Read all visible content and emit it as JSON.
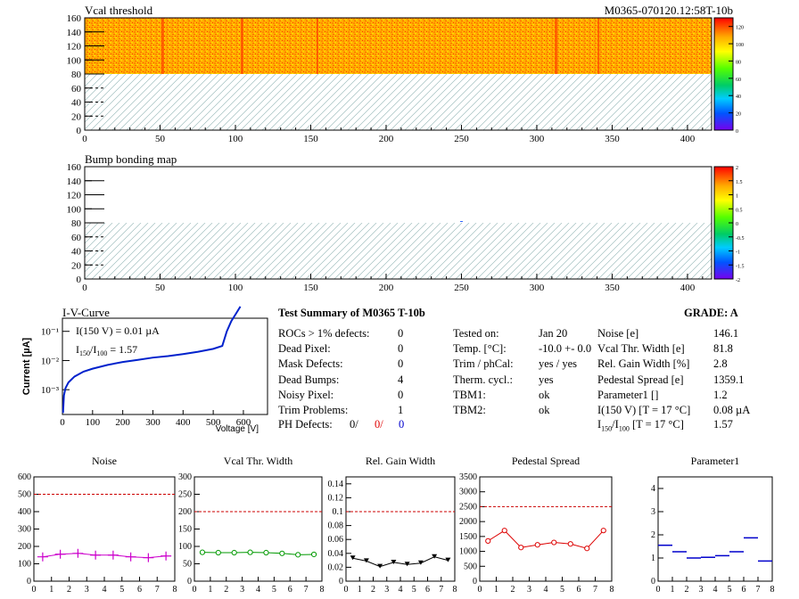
{
  "maps": [
    {
      "title": "Vcal threshold",
      "module_id": "M0365-070120.12:58T-10b",
      "x_ticks": [
        0,
        50,
        100,
        150,
        200,
        250,
        300,
        350,
        400
      ],
      "y_ticks": [
        0,
        20,
        40,
        60,
        80,
        100,
        120,
        140,
        160
      ],
      "z_ticks": [
        0,
        20,
        40,
        60,
        80,
        100,
        120
      ]
    },
    {
      "title": "Bump bonding map",
      "x_ticks": [
        0,
        50,
        100,
        150,
        200,
        250,
        300,
        350,
        400
      ],
      "y_ticks": [
        0,
        20,
        40,
        60,
        80,
        100,
        120,
        140,
        160
      ],
      "z_ticks": [
        -2,
        -1.5,
        -1,
        -0.5,
        0,
        0.5,
        1,
        1.5,
        2
      ]
    }
  ],
  "iv": {
    "title": "I-V-Curve",
    "ylabel": "Current [µA]",
    "xlabel": "Voltage [V]",
    "annot1": "I(150 V) = 0.01 µA",
    "annot2_pre": "I",
    "annot2_sub1": "150",
    "annot2_mid": "/I",
    "annot2_sub2": "100",
    "annot2_post": " =  1.57",
    "x_ticks": [
      0,
      100,
      200,
      300,
      400,
      500,
      600
    ],
    "y_ticks": [
      "10⁻³",
      "10⁻²",
      "10⁻¹"
    ]
  },
  "summary": {
    "title": "Test Summary of M0365     T-10b",
    "grade": "GRADE:  A",
    "rows": [
      {
        "label": "ROCs > 1% defects:",
        "value": "0"
      },
      {
        "label": "Dead Pixel:",
        "value": "0"
      },
      {
        "label": "Mask Defects:",
        "value": "0"
      },
      {
        "label": "Dead Bumps:",
        "value": "4"
      },
      {
        "label": "Noisy Pixel:",
        "value": "0"
      },
      {
        "label": "Trim Problems:",
        "value": "1"
      }
    ],
    "ph_label": "PH Defects:",
    "ph_v1": "0/",
    "ph_v2": "0/",
    "ph_v3": "0",
    "mid": [
      {
        "label": "Tested on:",
        "value": "Jan 20"
      },
      {
        "label": "Temp. [°C]:",
        "value": "-10.0 +- 0.0"
      },
      {
        "label": "Trim / phCal:",
        "value": "yes / yes"
      },
      {
        "label": "Therm. cycl.:",
        "value": "yes"
      },
      {
        "label": "TBM1:",
        "value": "ok"
      },
      {
        "label": "TBM2:",
        "value": "ok"
      }
    ],
    "right": [
      {
        "label": "Noise [e]",
        "value": "146.1"
      },
      {
        "label": "Vcal Thr. Width [e]",
        "value": "81.8"
      },
      {
        "label": "Rel. Gain Width [%]",
        "value": "2.8"
      },
      {
        "label": "Pedestal Spread [e]",
        "value": "1359.1"
      },
      {
        "label": "Parameter1 []",
        "value": "1.2"
      },
      {
        "label": "I(150 V) [T = 17 °C]",
        "value": "0.08 µA"
      }
    ],
    "ratio_pre": "I",
    "ratio_sub1": "150",
    "ratio_mid": "/I",
    "ratio_sub2": "100",
    "ratio_post": "  [T = 17 °C]",
    "ratio_value": "1.57"
  },
  "chart_data": [
    {
      "type": "line",
      "title": "Noise",
      "x": [
        0.5,
        1.5,
        2.5,
        3.5,
        4.5,
        5.5,
        6.5,
        7.5
      ],
      "values": [
        140,
        155,
        160,
        150,
        150,
        140,
        135,
        145
      ],
      "ylim": [
        0,
        600
      ],
      "xlim": [
        0,
        8
      ],
      "y_ticks": [
        0,
        100,
        200,
        300,
        400,
        500,
        600
      ],
      "threshold": 500,
      "color": "#cc00cc",
      "marker": "cross"
    },
    {
      "type": "line",
      "title": "Vcal Thr. Width",
      "x": [
        0.5,
        1.5,
        2.5,
        3.5,
        4.5,
        5.5,
        6.5,
        7.5
      ],
      "values": [
        83,
        82,
        82,
        83,
        82,
        80,
        76,
        77
      ],
      "ylim": [
        0,
        300
      ],
      "xlim": [
        0,
        8
      ],
      "y_ticks": [
        0,
        50,
        100,
        150,
        200,
        250,
        300
      ],
      "threshold": 200,
      "color": "#009900",
      "marker": "circle"
    },
    {
      "type": "line",
      "title": "Rel. Gain Width",
      "x": [
        0.5,
        1.5,
        2.5,
        3.5,
        4.5,
        5.5,
        6.5,
        7.5
      ],
      "values": [
        0.033,
        0.029,
        0.021,
        0.027,
        0.024,
        0.026,
        0.035,
        0.03
      ],
      "ylim": [
        0,
        0.15
      ],
      "xlim": [
        0,
        8
      ],
      "y_ticks": [
        0,
        0.02,
        0.04,
        0.06,
        0.08,
        0.1,
        0.12,
        0.14
      ],
      "threshold": 0.1,
      "color": "#000000",
      "marker": "triangle"
    },
    {
      "type": "line",
      "title": "Pedestal Spread",
      "x": [
        0.5,
        1.5,
        2.5,
        3.5,
        4.5,
        5.5,
        6.5,
        7.5
      ],
      "values": [
        1350,
        1700,
        1130,
        1220,
        1300,
        1250,
        1100,
        1700
      ],
      "ylim": [
        0,
        3500
      ],
      "xlim": [
        0,
        8
      ],
      "y_ticks": [
        0,
        500,
        1000,
        1500,
        2000,
        2500,
        3000,
        3500
      ],
      "threshold": 2500,
      "color": "#dd0000",
      "marker": "circle"
    },
    {
      "type": "scatter",
      "title": "Parameter1",
      "x": [
        0.5,
        1.5,
        2.5,
        3.5,
        4.5,
        5.5,
        6.5,
        7.5
      ],
      "values": [
        1.55,
        1.27,
        1.0,
        1.03,
        1.1,
        1.27,
        1.87,
        0.87
      ],
      "ylim": [
        0,
        4.5
      ],
      "xlim": [
        0,
        8
      ],
      "y_ticks": [
        0,
        1,
        2,
        3,
        4
      ],
      "color": "#0000cc",
      "marker": "hbar"
    }
  ]
}
